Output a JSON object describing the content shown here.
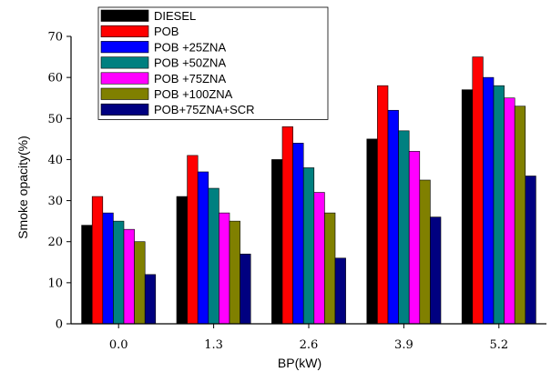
{
  "chart_data": {
    "type": "bar",
    "title": "",
    "xlabel": "BP(kW)",
    "ylabel": "Smoke opacity(%)",
    "ylim": [
      0,
      70
    ],
    "yticks": [
      0,
      10,
      20,
      30,
      40,
      50,
      60,
      70
    ],
    "categories": [
      "0.0",
      "1.3",
      "2.6",
      "3.9",
      "5.2"
    ],
    "legend_position": "top-left",
    "grid": false,
    "series": [
      {
        "name": "DIESEL",
        "color": "#000000",
        "values": [
          24,
          31,
          40,
          45,
          57
        ]
      },
      {
        "name": "POB",
        "color": "#ff0000",
        "values": [
          31,
          41,
          48,
          58,
          65
        ]
      },
      {
        "name": "POB +25ZNA",
        "color": "#0000ff",
        "values": [
          27,
          37,
          44,
          52,
          60
        ]
      },
      {
        "name": "POB +50ZNA",
        "color": "#008080",
        "values": [
          25,
          33,
          38,
          47,
          58
        ]
      },
      {
        "name": "POB +75ZNA",
        "color": "#ff00ff",
        "values": [
          23,
          27,
          32,
          42,
          55
        ]
      },
      {
        "name": "POB +100ZNA",
        "color": "#808000",
        "values": [
          20,
          25,
          27,
          35,
          53
        ]
      },
      {
        "name": "POB+75ZNA+SCR",
        "color": "#000080",
        "values": [
          12,
          17,
          16,
          26,
          36
        ]
      }
    ]
  }
}
